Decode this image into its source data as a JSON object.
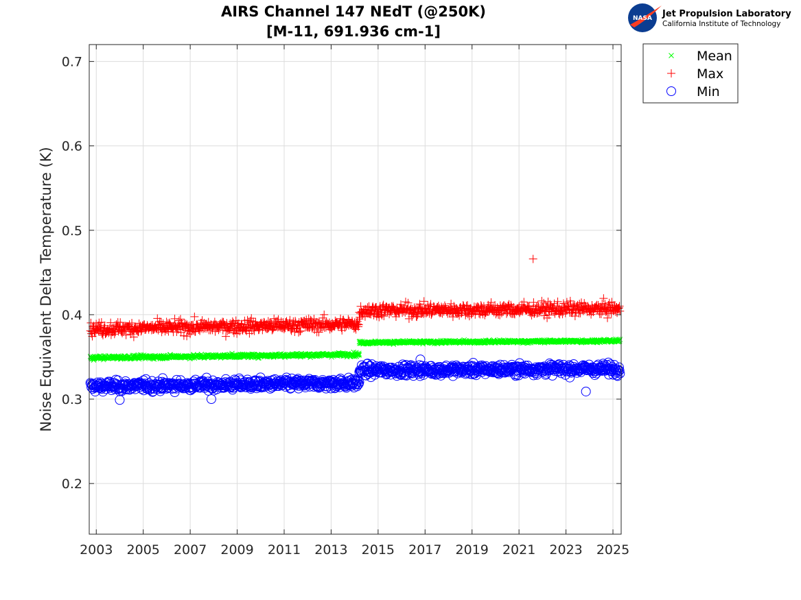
{
  "logo": {
    "badge_text": "NASA",
    "org_name": "Jet Propulsion Laboratory",
    "org_sub": "California Institute of Technology",
    "badge_color": "#0b3d91",
    "swoosh_color": "#fc3d21"
  },
  "chart_data": {
    "type": "scatter",
    "title": [
      "AIRS Channel 147 NEdT (@250K)",
      "[M-11, 691.936 cm-1]"
    ],
    "xlabel": "",
    "ylabel": "Noise Equivalent Delta Temperature (K)",
    "xlim": [
      2002.7,
      2025.35
    ],
    "ylim": [
      0.14,
      0.72
    ],
    "xticks": [
      2003,
      2005,
      2007,
      2009,
      2011,
      2013,
      2015,
      2017,
      2019,
      2021,
      2023,
      2025
    ],
    "xtick_labels": [
      "2003",
      "2005",
      "2007",
      "2009",
      "2011",
      "2013",
      "2015",
      "2017",
      "2019",
      "2021",
      "2023",
      "2025"
    ],
    "yticks": [
      0.2,
      0.3,
      0.4,
      0.5,
      0.6,
      0.7
    ],
    "ytick_labels": [
      "0.2",
      "0.3",
      "0.4",
      "0.5",
      "0.6",
      "0.7"
    ],
    "grid": true,
    "legend_position": "outside-top-right",
    "x_range": [
      2002.75,
      2025.3
    ],
    "step_date": 2014.2,
    "series": [
      {
        "name": "Mean",
        "marker": "x",
        "color": "#00ff00",
        "segments": [
          {
            "x": [
              2002.75,
              2014.2
            ],
            "y": [
              0.349,
              0.353
            ],
            "spread": 0.0015
          },
          {
            "x": [
              2014.2,
              2025.3
            ],
            "y": [
              0.367,
              0.369
            ],
            "spread": 0.0012
          }
        ],
        "outliers": []
      },
      {
        "name": "Max",
        "marker": "+",
        "color": "#ff0000",
        "segments": [
          {
            "x": [
              2002.75,
              2014.2
            ],
            "y": [
              0.383,
              0.389
            ],
            "spread": 0.0055
          },
          {
            "x": [
              2014.2,
              2025.3
            ],
            "y": [
              0.405,
              0.407
            ],
            "spread": 0.0055
          }
        ],
        "outliers": [
          {
            "x": 2021.6,
            "y": 0.466
          }
        ]
      },
      {
        "name": "Min",
        "marker": "o",
        "color": "#0000ff",
        "segments": [
          {
            "x": [
              2002.75,
              2014.2
            ],
            "y": [
              0.315,
              0.319
            ],
            "spread": 0.0045
          },
          {
            "x": [
              2014.2,
              2025.3
            ],
            "y": [
              0.334,
              0.336
            ],
            "spread": 0.0045
          }
        ],
        "outliers": [
          {
            "x": 2023.85,
            "y": 0.309
          },
          {
            "x": 2004.0,
            "y": 0.299
          },
          {
            "x": 2007.9,
            "y": 0.3
          },
          {
            "x": 2016.8,
            "y": 0.347
          }
        ]
      }
    ]
  }
}
